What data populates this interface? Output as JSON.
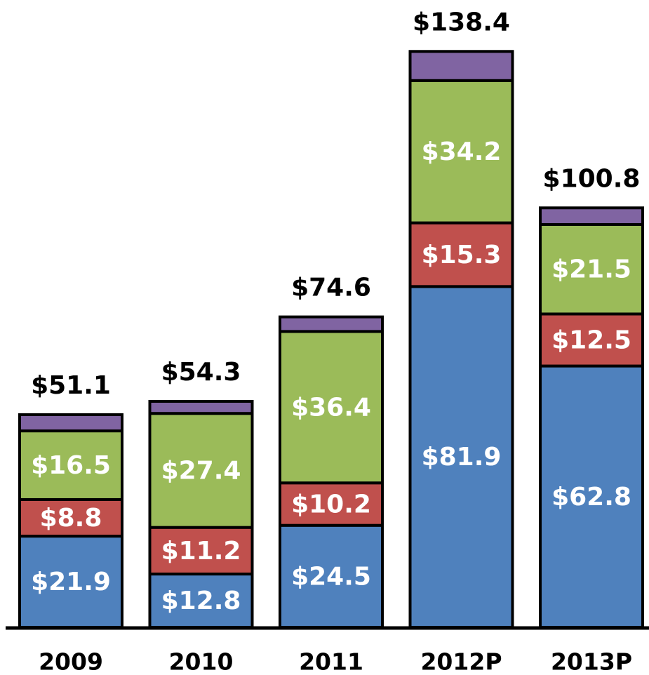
{
  "chart_data": {
    "type": "stacked-bar",
    "categories": [
      "2009",
      "2010",
      "2011",
      "2012P",
      "2013P"
    ],
    "series": [
      {
        "color": "#4f81bd",
        "values": [
          21.9,
          12.8,
          24.5,
          81.9,
          62.8
        ],
        "value_labels": [
          "$21.9",
          "$12.8",
          "$24.5",
          "$81.9",
          "$62.8"
        ]
      },
      {
        "color": "#c0504d",
        "values": [
          8.8,
          11.2,
          10.2,
          15.3,
          12.5
        ],
        "value_labels": [
          "$8.8",
          "$11.2",
          "$10.2",
          "$15.3",
          "$12.5"
        ]
      },
      {
        "color": "#9bbb59",
        "values": [
          16.5,
          27.4,
          36.4,
          34.2,
          21.5
        ],
        "value_labels": [
          "$16.5",
          "$27.4",
          "$36.4",
          "$34.2",
          "$21.5"
        ]
      },
      {
        "color": "#8064a2",
        "values": [
          3.9,
          2.9,
          3.5,
          7.0,
          4.0
        ]
      }
    ],
    "totals": {
      "values": [
        51.1,
        54.3,
        74.6,
        138.4,
        100.8
      ],
      "value_labels": [
        "$51.1",
        "$54.3",
        "$74.6",
        "$138.4",
        "$100.8"
      ]
    }
  }
}
